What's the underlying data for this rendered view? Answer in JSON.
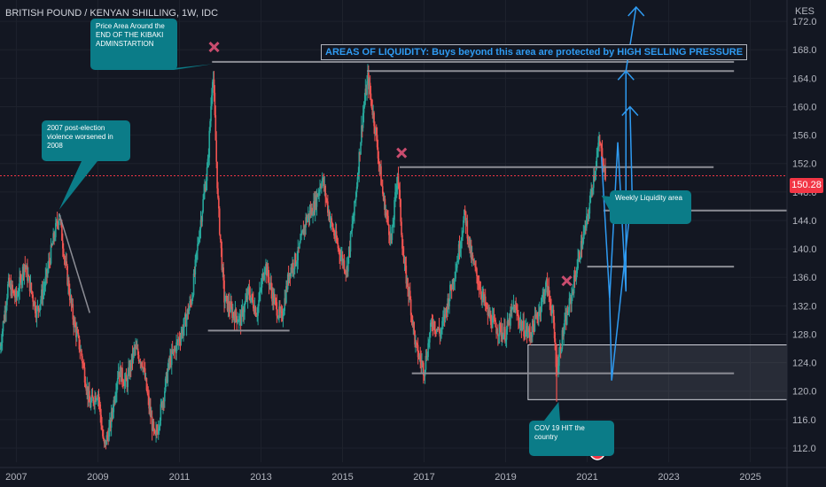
{
  "chart_data": {
    "type": "candlestick",
    "symbol_title": "BRITISH POUND / KENYAN SHILLING, 1W, IDC",
    "currency_label": "KES",
    "last_price": 150.28,
    "last_price_label": "150.28",
    "ylim": [
      110,
      175
    ],
    "y_ticks": [
      112,
      116,
      120,
      124,
      128,
      132,
      136,
      140,
      144,
      148,
      152,
      156,
      160,
      164,
      168,
      172
    ],
    "xlim": [
      2006.6,
      2025.9
    ],
    "x_ticks": [
      2007,
      2009,
      2011,
      2013,
      2015,
      2017,
      2019,
      2021,
      2023,
      2025
    ],
    "price_path": [
      [
        2006.6,
        126
      ],
      [
        2006.8,
        135
      ],
      [
        2007.0,
        133
      ],
      [
        2007.2,
        138
      ],
      [
        2007.5,
        131
      ],
      [
        2007.7,
        135
      ],
      [
        2007.9,
        141
      ],
      [
        2008.05,
        145
      ],
      [
        2008.2,
        138
      ],
      [
        2008.4,
        130
      ],
      [
        2008.6,
        125
      ],
      [
        2008.8,
        118
      ],
      [
        2009.0,
        120
      ],
      [
        2009.15,
        112
      ],
      [
        2009.3,
        115
      ],
      [
        2009.5,
        123
      ],
      [
        2009.7,
        121
      ],
      [
        2009.9,
        126
      ],
      [
        2010.1,
        124
      ],
      [
        2010.25,
        118
      ],
      [
        2010.4,
        113
      ],
      [
        2010.6,
        119
      ],
      [
        2010.75,
        124
      ],
      [
        2010.9,
        126
      ],
      [
        2011.1,
        129
      ],
      [
        2011.3,
        133
      ],
      [
        2011.5,
        143
      ],
      [
        2011.7,
        152
      ],
      [
        2011.82,
        165.5
      ],
      [
        2011.95,
        146
      ],
      [
        2012.1,
        133
      ],
      [
        2012.3,
        131
      ],
      [
        2012.5,
        130
      ],
      [
        2012.7,
        134
      ],
      [
        2012.9,
        131
      ],
      [
        2013.1,
        138
      ],
      [
        2013.3,
        133
      ],
      [
        2013.5,
        130
      ],
      [
        2013.7,
        137
      ],
      [
        2013.9,
        139
      ],
      [
        2014.1,
        144
      ],
      [
        2014.3,
        146
      ],
      [
        2014.5,
        150
      ],
      [
        2014.7,
        144
      ],
      [
        2014.9,
        140
      ],
      [
        2015.1,
        137
      ],
      [
        2015.3,
        146
      ],
      [
        2015.5,
        159
      ],
      [
        2015.62,
        164
      ],
      [
        2015.8,
        157
      ],
      [
        2016.0,
        147
      ],
      [
        2016.2,
        141
      ],
      [
        2016.35,
        151
      ],
      [
        2016.5,
        138
      ],
      [
        2016.65,
        133
      ],
      [
        2016.8,
        126
      ],
      [
        2017.0,
        123
      ],
      [
        2017.2,
        130
      ],
      [
        2017.4,
        128
      ],
      [
        2017.6,
        133
      ],
      [
        2017.8,
        138
      ],
      [
        2018.0,
        145
      ],
      [
        2018.15,
        139
      ],
      [
        2018.35,
        135
      ],
      [
        2018.55,
        131
      ],
      [
        2018.75,
        129
      ],
      [
        2019.0,
        128
      ],
      [
        2019.2,
        132
      ],
      [
        2019.4,
        129
      ],
      [
        2019.6,
        128
      ],
      [
        2019.8,
        131
      ],
      [
        2020.0,
        135
      ],
      [
        2020.15,
        131
      ],
      [
        2020.25,
        123
      ],
      [
        2020.4,
        128
      ],
      [
        2020.6,
        133
      ],
      [
        2020.8,
        139
      ],
      [
        2021.0,
        144
      ],
      [
        2021.15,
        150
      ],
      [
        2021.3,
        155
      ],
      [
        2021.4,
        152
      ],
      [
        2021.45,
        150.28
      ]
    ]
  },
  "annotations": {
    "liquidity_banner": "AREAS OF LIQUIDITY: Buys beyond this area are protected by HIGH SELLING PRESSURE",
    "kibaki": "Price Area Around the END OF THE KIBAKI ADMINSTARTION",
    "election": "2007 post-election violence worsened in 2008",
    "weekly_liquidity": "Weekly Liquidity area",
    "covid": "COV 19 HIT the country",
    "badge_count": "2"
  },
  "colors": {
    "background": "#131722",
    "grid": "#1e222d",
    "up": "#26a69a",
    "down": "#ef5350",
    "level_line": "#8c8d95",
    "projection": "#2f9bf2",
    "marker_x": "#c94c6e",
    "callout": "#0b7c88",
    "price_line": "#f23645"
  },
  "levels": [
    {
      "from": 2011.8,
      "to": 2024.6,
      "price": 166.3
    },
    {
      "from": 2015.6,
      "to": 2024.6,
      "price": 165.0
    },
    {
      "from": 2016.4,
      "to": 2024.1,
      "price": 151.5
    },
    {
      "from": 2021.4,
      "to": 2025.9,
      "price": 145.4
    },
    {
      "from": 2021.0,
      "to": 2024.6,
      "price": 137.5
    },
    {
      "from": 2011.7,
      "to": 2013.7,
      "price": 128.5
    },
    {
      "from": 2016.7,
      "to": 2024.6,
      "price": 122.5
    }
  ],
  "liquidity_zone": {
    "from": 2019.55,
    "to": 2025.9,
    "top": 126.5,
    "bottom": 118.8
  },
  "cross_markers": [
    {
      "x": 2011.85,
      "y": 168.4
    },
    {
      "x": 2016.45,
      "y": 153.5
    },
    {
      "x": 2020.5,
      "y": 135.5
    }
  ],
  "projection_path": [
    [
      2021.35,
      153
    ],
    [
      2021.55,
      133
    ],
    [
      2021.75,
      155
    ],
    [
      2021.95,
      134
    ],
    [
      2021.95,
      165
    ],
    [
      2022.2,
      174
    ]
  ],
  "projection_long": [
    [
      2021.6,
      121.5
    ],
    [
      2022.1,
      148
    ]
  ]
}
